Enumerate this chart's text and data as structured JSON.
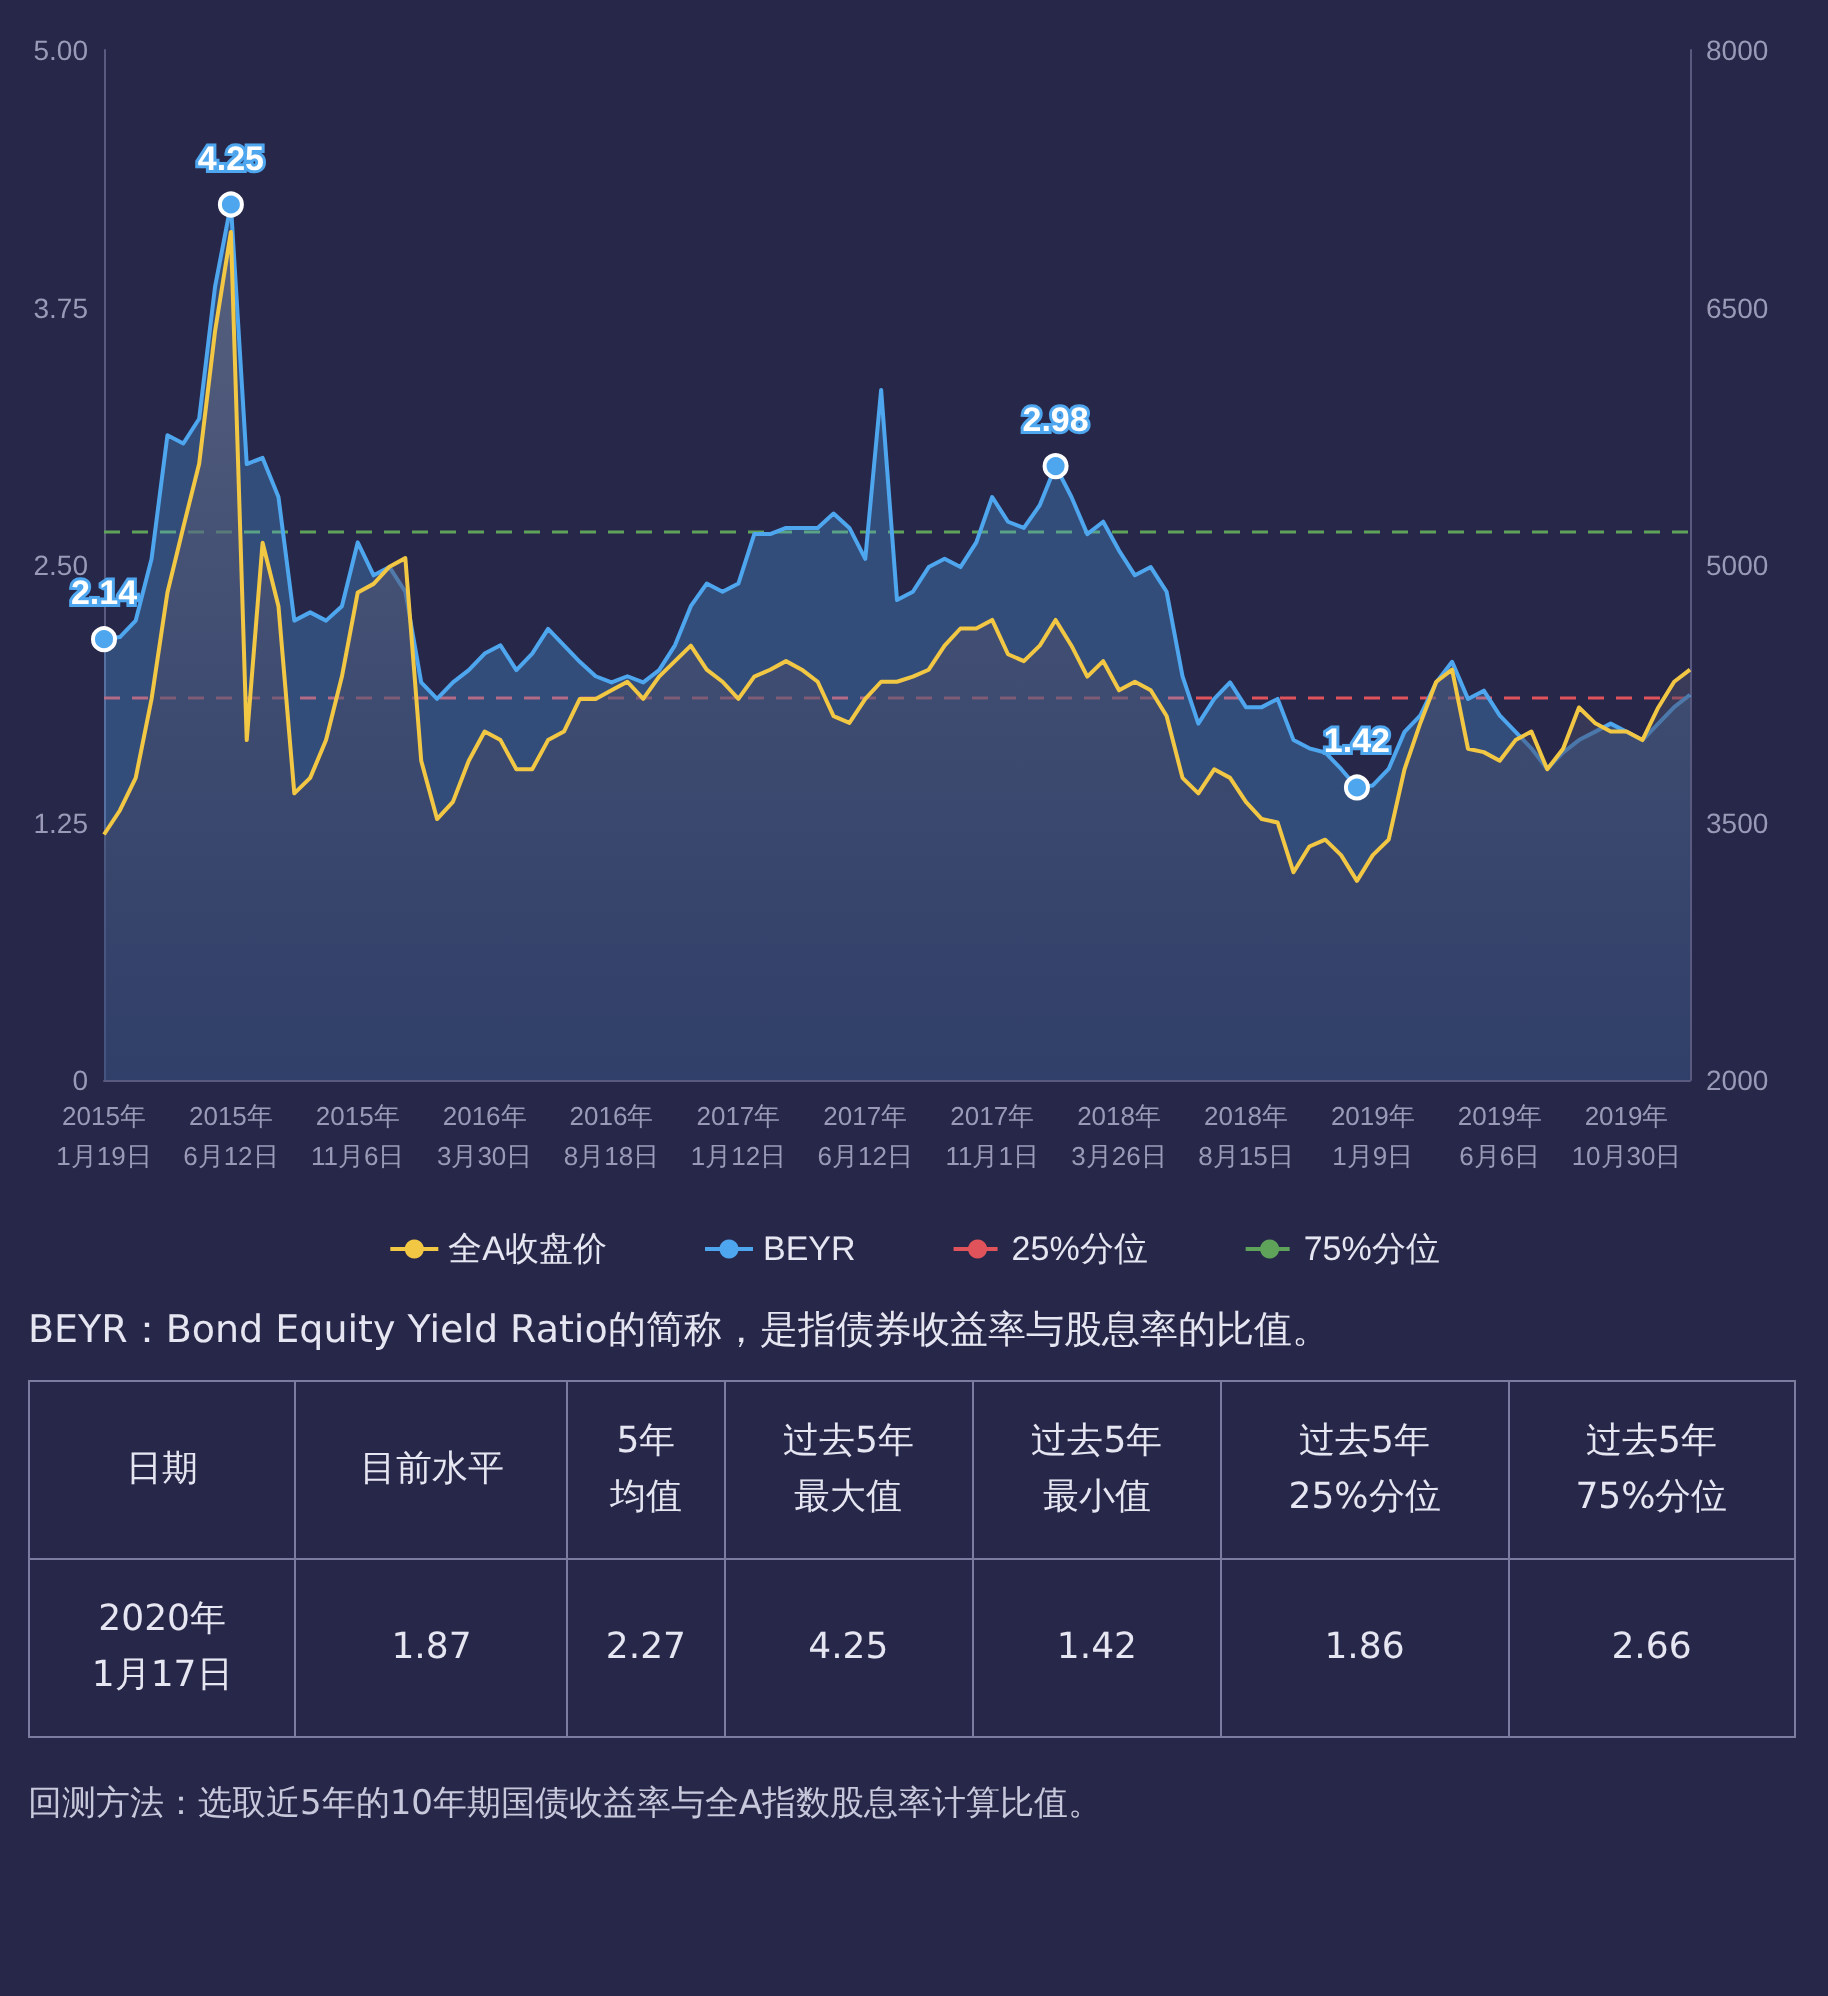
{
  "chart_data": {
    "type": "area",
    "categories": [
      "2015年\n1月19日",
      null,
      null,
      null,
      null,
      null,
      null,
      null,
      "2015年\n6月12日",
      null,
      null,
      null,
      null,
      null,
      null,
      null,
      "2015年\n11月6日",
      null,
      null,
      null,
      null,
      null,
      null,
      null,
      "2016年\n3月30日",
      null,
      null,
      null,
      null,
      null,
      null,
      null,
      "2016年\n8月18日",
      null,
      null,
      null,
      null,
      null,
      null,
      null,
      "2017年\n1月12日",
      null,
      null,
      null,
      null,
      null,
      null,
      null,
      "2017年\n6月12日",
      null,
      null,
      null,
      null,
      null,
      null,
      null,
      "2017年\n11月1日",
      null,
      null,
      null,
      null,
      null,
      null,
      null,
      "2018年\n3月26日",
      null,
      null,
      null,
      null,
      null,
      null,
      null,
      "2018年\n8月15日",
      null,
      null,
      null,
      null,
      null,
      null,
      null,
      "2019年\n1月9日",
      null,
      null,
      null,
      null,
      null,
      null,
      null,
      "2019年\n6月6日",
      null,
      null,
      null,
      null,
      null,
      null,
      null,
      "2019年\n10月30日",
      null,
      null,
      null,
      null
    ],
    "series": [
      {
        "name": "全A收盘价",
        "color": "#f2c744",
        "axis": "y2",
        "values": [
          3430,
          3570,
          3760,
          4220,
          4840,
          5220,
          5590,
          6360,
          6940,
          3980,
          5130,
          4760,
          3670,
          3760,
          3980,
          4350,
          4840,
          4890,
          4990,
          5040,
          3860,
          3520,
          3620,
          3860,
          4030,
          3980,
          3810,
          3810,
          3980,
          4030,
          4220,
          4220,
          4270,
          4320,
          4220,
          4350,
          4440,
          4530,
          4390,
          4320,
          4220,
          4350,
          4390,
          4440,
          4390,
          4320,
          4120,
          4080,
          4220,
          4320,
          4320,
          4350,
          4390,
          4530,
          4630,
          4630,
          4680,
          4480,
          4440,
          4530,
          4680,
          4530,
          4350,
          4440,
          4270,
          4320,
          4270,
          4120,
          3760,
          3670,
          3810,
          3760,
          3620,
          3520,
          3500,
          3210,
          3360,
          3400,
          3310,
          3160,
          3310,
          3400,
          3810,
          4080,
          4320,
          4390,
          3930,
          3910,
          3860,
          3980,
          4030,
          3810,
          3930,
          4170,
          4080,
          4030,
          4030,
          3980,
          4170,
          4320,
          4390
        ]
      },
      {
        "name": "BEYR",
        "color": "#4ea6ee",
        "axis": "y",
        "values": [
          2.14,
          2.15,
          2.23,
          2.53,
          3.13,
          3.09,
          3.21,
          3.85,
          4.25,
          2.99,
          3.02,
          2.83,
          2.23,
          2.27,
          2.23,
          2.3,
          2.61,
          2.45,
          2.49,
          2.37,
          1.93,
          1.85,
          1.93,
          1.99,
          2.07,
          2.11,
          1.99,
          2.07,
          2.19,
          2.11,
          2.03,
          1.96,
          1.93,
          1.96,
          1.93,
          1.99,
          2.11,
          2.3,
          2.41,
          2.37,
          2.41,
          2.65,
          2.65,
          2.68,
          2.68,
          2.68,
          2.75,
          2.68,
          2.53,
          3.35,
          2.33,
          2.37,
          2.49,
          2.53,
          2.49,
          2.61,
          2.83,
          2.71,
          2.68,
          2.79,
          2.98,
          2.83,
          2.65,
          2.71,
          2.57,
          2.45,
          2.49,
          2.37,
          1.96,
          1.73,
          1.85,
          1.93,
          1.81,
          1.81,
          1.85,
          1.65,
          1.61,
          1.59,
          1.51,
          1.42,
          1.43,
          1.51,
          1.69,
          1.77,
          1.93,
          2.03,
          1.85,
          1.89,
          1.77,
          1.69,
          1.61,
          1.51,
          1.59,
          1.65,
          1.69,
          1.73,
          1.69,
          1.65,
          1.73,
          1.81,
          1.87
        ],
        "value_labels": [
          "2.14",
          null,
          null,
          null,
          null,
          null,
          null,
          null,
          "4.25",
          null,
          null,
          null,
          null,
          null,
          null,
          null,
          null,
          null,
          null,
          null,
          null,
          null,
          null,
          null,
          null,
          null,
          null,
          null,
          null,
          null,
          null,
          null,
          null,
          null,
          null,
          null,
          null,
          null,
          null,
          null,
          null,
          null,
          null,
          null,
          null,
          null,
          null,
          null,
          null,
          null,
          null,
          null,
          null,
          null,
          null,
          null,
          null,
          null,
          null,
          null,
          "2.98",
          null,
          null,
          null,
          null,
          null,
          null,
          null,
          null,
          null,
          null,
          null,
          null,
          null,
          null,
          null,
          null,
          null,
          null,
          "1.42",
          null,
          null,
          null,
          null,
          null,
          null,
          null,
          null,
          null,
          null,
          null,
          null,
          null,
          null,
          null,
          null,
          null,
          null,
          null,
          null,
          null
        ]
      }
    ],
    "ylim": [
      0,
      5
    ],
    "yticks": [
      0,
      1.25,
      {
        "value": 2.5,
        "label": "2.50"
      },
      3.75,
      {
        "value": 5,
        "label": "5.00"
      }
    ],
    "y2lim": [
      2000,
      8000
    ],
    "y2ticks": [
      2000,
      3500,
      5000,
      6500,
      8000
    ],
    "ref_lines": [
      {
        "axis": "y",
        "value": 1.86,
        "label": "25%分位",
        "color": "#e0535a",
        "line_style": "dashed"
      },
      {
        "axis": "y",
        "value": 2.66,
        "label": "75%分位",
        "color": "#5fa25a",
        "line_style": "dashed"
      }
    ],
    "grid": false,
    "legend": "bottom",
    "marker": "none",
    "line_style": "solid",
    "annotations": [
      "BEYR：Bond Equity Yield Ratio的简称，是指债券收益率与股息率的比值。",
      "日期",
      "目前水平",
      "5年均值",
      "过去5年最大值",
      "过去5年最小值",
      "过去5年25%分位",
      "过去5年75%分位",
      "2020年1月17日",
      "1.87",
      "2.27",
      "4.25",
      "1.42",
      "1.86",
      "2.66",
      "回测方法：选取近5年的10年期国债收益率与全A指数股息率计算比值。"
    ]
  }
}
